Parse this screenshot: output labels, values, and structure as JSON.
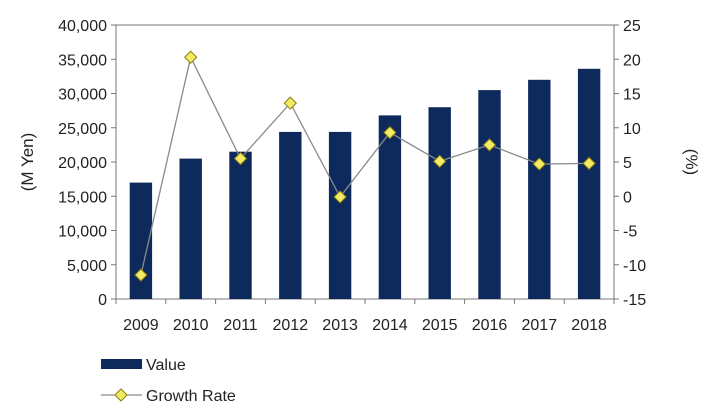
{
  "chart_data": {
    "type": "bar",
    "categories": [
      "2009",
      "2010",
      "2011",
      "2012",
      "2013",
      "2014",
      "2015",
      "2016",
      "2017",
      "2018"
    ],
    "series": [
      {
        "name": "Value",
        "type": "bar",
        "axis": "left",
        "color": "#0e2a5c",
        "values": [
          17000,
          20500,
          21500,
          24400,
          24400,
          26800,
          28000,
          30500,
          32000,
          33600
        ]
      },
      {
        "name": "Growth Rate",
        "type": "line",
        "axis": "right",
        "color": "#8a8a8a",
        "marker_color": "#f2ec64",
        "values": [
          -11.5,
          20.3,
          5.5,
          13.6,
          -0.1,
          9.3,
          5.1,
          7.5,
          4.7,
          4.8
        ]
      }
    ],
    "ylabel": "(M Yen)",
    "y2label": "(%)",
    "ylim": [
      0,
      40000
    ],
    "y2lim": [
      -15,
      25
    ],
    "yticks": [
      "0",
      "5,000",
      "10,000",
      "15,000",
      "20,000",
      "25,000",
      "30,000",
      "35,000",
      "40,000"
    ],
    "y2ticks": [
      "-15",
      "-10",
      "-5",
      "0",
      "5",
      "10",
      "15",
      "20",
      "25"
    ],
    "grid": false,
    "legend_position": "bottom-left"
  }
}
